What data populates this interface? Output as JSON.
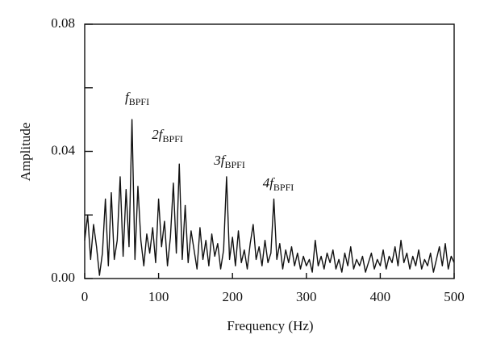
{
  "chart_data": {
    "type": "line",
    "xlabel": "Frequency (Hz)",
    "ylabel": "Amplitude",
    "color": "#111111",
    "xlim": [
      0,
      500
    ],
    "xticks": [
      0,
      100,
      200,
      300,
      400,
      500
    ],
    "ylim": [
      0,
      0.08
    ],
    "yticks": [
      {
        "value": 0,
        "label": "0.00"
      },
      {
        "value": 0.04,
        "label": "0.04"
      },
      {
        "value": 0.08,
        "label": "0.08"
      }
    ],
    "minor_yticks": [
      0.02,
      0.06
    ],
    "grid": false,
    "annotations": [
      {
        "text": "f",
        "sub": "BPFI",
        "x": 71,
        "y": 0.0566
      },
      {
        "text": "2f",
        "sub": "BPFI",
        "x": 112,
        "y": 0.045
      },
      {
        "text": "3f",
        "sub": "BPFI",
        "x": 196,
        "y": 0.0368
      },
      {
        "text": "4f",
        "sub": "BPFI",
        "x": 262,
        "y": 0.0297
      }
    ],
    "x": [
      0,
      4,
      8,
      12,
      16,
      20,
      24,
      28,
      32,
      36,
      40,
      44,
      48,
      52,
      56,
      60,
      64,
      68,
      72,
      76,
      80,
      84,
      88,
      92,
      96,
      100,
      104,
      108,
      112,
      116,
      120,
      124,
      128,
      132,
      136,
      140,
      144,
      148,
      152,
      156,
      160,
      164,
      168,
      172,
      176,
      180,
      184,
      188,
      192,
      196,
      200,
      204,
      208,
      212,
      216,
      220,
      224,
      228,
      232,
      236,
      240,
      244,
      248,
      252,
      256,
      260,
      264,
      268,
      272,
      276,
      280,
      284,
      288,
      292,
      296,
      300,
      304,
      308,
      312,
      316,
      320,
      324,
      328,
      332,
      336,
      340,
      344,
      348,
      352,
      356,
      360,
      364,
      368,
      372,
      376,
      380,
      384,
      388,
      392,
      396,
      400,
      404,
      408,
      412,
      416,
      420,
      424,
      428,
      432,
      436,
      440,
      444,
      448,
      452,
      456,
      460,
      464,
      468,
      472,
      476,
      480,
      484,
      488,
      492,
      496,
      500
    ],
    "values": [
      0.012,
      0.02,
      0.006,
      0.017,
      0.01,
      0.001,
      0.008,
      0.025,
      0.004,
      0.027,
      0.006,
      0.012,
      0.032,
      0.007,
      0.028,
      0.01,
      0.05,
      0.006,
      0.029,
      0.012,
      0.004,
      0.014,
      0.008,
      0.016,
      0.005,
      0.025,
      0.01,
      0.018,
      0.004,
      0.013,
      0.03,
      0.008,
      0.036,
      0.006,
      0.023,
      0.005,
      0.015,
      0.009,
      0.003,
      0.016,
      0.006,
      0.012,
      0.004,
      0.014,
      0.007,
      0.011,
      0.003,
      0.009,
      0.032,
      0.006,
      0.013,
      0.004,
      0.015,
      0.005,
      0.009,
      0.003,
      0.011,
      0.017,
      0.006,
      0.01,
      0.004,
      0.012,
      0.005,
      0.008,
      0.025,
      0.006,
      0.011,
      0.003,
      0.009,
      0.005,
      0.01,
      0.004,
      0.008,
      0.003,
      0.007,
      0.004,
      0.006,
      0.002,
      0.012,
      0.004,
      0.007,
      0.003,
      0.008,
      0.005,
      0.009,
      0.003,
      0.006,
      0.002,
      0.008,
      0.004,
      0.01,
      0.003,
      0.006,
      0.004,
      0.007,
      0.002,
      0.005,
      0.008,
      0.003,
      0.006,
      0.004,
      0.009,
      0.003,
      0.007,
      0.005,
      0.01,
      0.004,
      0.012,
      0.005,
      0.008,
      0.003,
      0.007,
      0.004,
      0.009,
      0.003,
      0.006,
      0.004,
      0.008,
      0.002,
      0.006,
      0.01,
      0.004,
      0.011,
      0.003,
      0.007,
      0.005
    ]
  }
}
